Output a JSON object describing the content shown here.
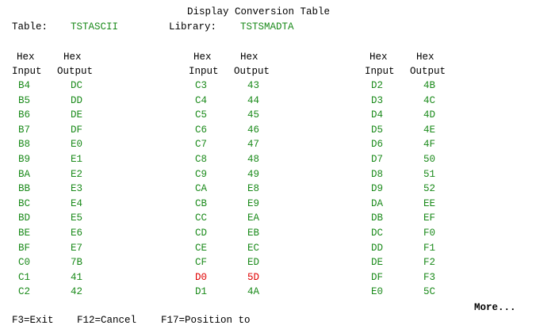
{
  "title": "Display Conversion Table",
  "table_label": "Table:",
  "table_value": "TSTASCII",
  "library_label": "Library:",
  "library_value": "TSTSMADTA",
  "col_header_top_in": "Hex",
  "col_header_top_out": "Hex",
  "col_header_in": "Input",
  "col_header_out": "Output",
  "colors": {
    "normal": "#1a8a1a",
    "highlight": "#e00000",
    "text": "#000000"
  },
  "columns": [
    {
      "rows": [
        {
          "in": "B4",
          "out": "DC"
        },
        {
          "in": "B5",
          "out": "DD"
        },
        {
          "in": "B6",
          "out": "DE"
        },
        {
          "in": "B7",
          "out": "DF"
        },
        {
          "in": "B8",
          "out": "E0"
        },
        {
          "in": "B9",
          "out": "E1"
        },
        {
          "in": "BA",
          "out": "E2"
        },
        {
          "in": "BB",
          "out": "E3"
        },
        {
          "in": "BC",
          "out": "E4"
        },
        {
          "in": "BD",
          "out": "E5"
        },
        {
          "in": "BE",
          "out": "E6"
        },
        {
          "in": "BF",
          "out": "E7"
        },
        {
          "in": "C0",
          "out": "7B"
        },
        {
          "in": "C1",
          "out": "41"
        },
        {
          "in": "C2",
          "out": "42"
        }
      ]
    },
    {
      "rows": [
        {
          "in": "C3",
          "out": "43"
        },
        {
          "in": "C4",
          "out": "44"
        },
        {
          "in": "C5",
          "out": "45"
        },
        {
          "in": "C6",
          "out": "46"
        },
        {
          "in": "C7",
          "out": "47"
        },
        {
          "in": "C8",
          "out": "48"
        },
        {
          "in": "C9",
          "out": "49"
        },
        {
          "in": "CA",
          "out": "E8"
        },
        {
          "in": "CB",
          "out": "E9"
        },
        {
          "in": "CC",
          "out": "EA"
        },
        {
          "in": "CD",
          "out": "EB"
        },
        {
          "in": "CE",
          "out": "EC"
        },
        {
          "in": "CF",
          "out": "ED"
        },
        {
          "in": "D0",
          "out": "5D",
          "highlight": true
        },
        {
          "in": "D1",
          "out": "4A"
        }
      ]
    },
    {
      "rows": [
        {
          "in": "D2",
          "out": "4B"
        },
        {
          "in": "D3",
          "out": "4C"
        },
        {
          "in": "D4",
          "out": "4D"
        },
        {
          "in": "D5",
          "out": "4E"
        },
        {
          "in": "D6",
          "out": "4F"
        },
        {
          "in": "D7",
          "out": "50"
        },
        {
          "in": "D8",
          "out": "51"
        },
        {
          "in": "D9",
          "out": "52"
        },
        {
          "in": "DA",
          "out": "EE"
        },
        {
          "in": "DB",
          "out": "EF"
        },
        {
          "in": "DC",
          "out": "F0"
        },
        {
          "in": "DD",
          "out": "F1"
        },
        {
          "in": "DE",
          "out": "F2"
        },
        {
          "in": "DF",
          "out": "F3"
        },
        {
          "in": "E0",
          "out": "5C"
        }
      ]
    }
  ],
  "more": "More...",
  "function_keys": [
    {
      "label": "F3=Exit"
    },
    {
      "label": "F12=Cancel"
    },
    {
      "label": "F17=Position to"
    }
  ]
}
